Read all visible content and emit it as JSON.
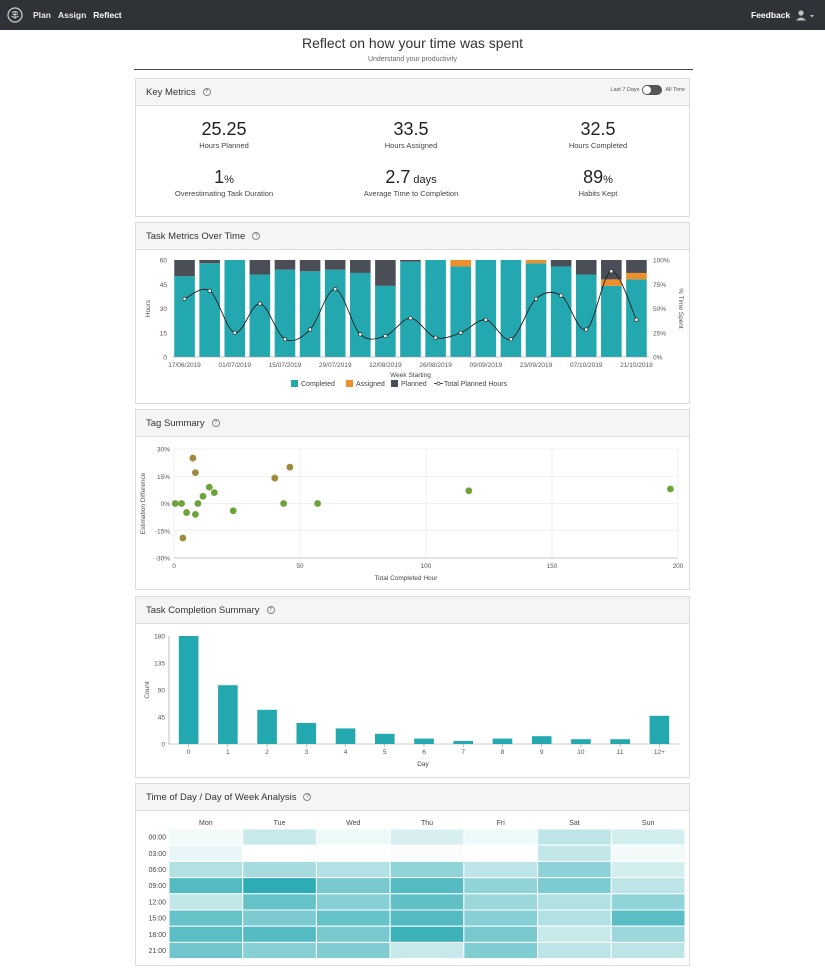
{
  "nav": {
    "logo": "brain-logo",
    "links": [
      "Plan",
      "Assign",
      "Reflect"
    ],
    "active": "Reflect",
    "feedback": "Feedback",
    "user_icon": "user-icon"
  },
  "page": {
    "title": "Reflect on how your time was spent",
    "subtitle": "Understand your productivity"
  },
  "key_metrics": {
    "title": "Key Metrics",
    "toggle_left": "Last 7 Days",
    "toggle_right": "All Time",
    "items": [
      {
        "value": "25.25",
        "unit": "",
        "label": "Hours Planned"
      },
      {
        "value": "33.5",
        "unit": "",
        "label": "Hours Assigned"
      },
      {
        "value": "32.5",
        "unit": "",
        "label": "Hours Completed"
      },
      {
        "value": "1",
        "unit": "%",
        "label": "Overestimating Task Duration"
      },
      {
        "value": "2.7",
        "unit": " days",
        "label": "Average Time to Completion"
      },
      {
        "value": "89",
        "unit": "%",
        "label": "Habits Kept"
      }
    ]
  },
  "task_metrics": {
    "title": "Task Metrics Over Time"
  },
  "tag_summary": {
    "title": "Tag Summary"
  },
  "completion_summary": {
    "title": "Task Completion Summary"
  },
  "heatmap_section": {
    "title": "Time of Day / Day of Week Analysis"
  },
  "colors": {
    "teal": "#23a8b0",
    "orange": "#ee8f2c",
    "dark": "#4a4e57",
    "green": "#6da33a",
    "olive": "#a08a3e"
  },
  "chart_data": [
    {
      "type": "bar",
      "title": "Task Metrics Over Time",
      "xlabel": "Week Starting",
      "ylabel": "Hours",
      "y2label": "% Time Spent",
      "ylim": [
        0,
        60
      ],
      "yticks": [
        0,
        15,
        30,
        45,
        60
      ],
      "y2ticks": [
        "0%",
        "25%",
        "50%",
        "75%",
        "100%"
      ],
      "x_tick_labels": [
        "17/06/2019",
        "01/07/2019",
        "15/07/2019",
        "29/07/2019",
        "12/08/2019",
        "26/08/2019",
        "09/09/2019",
        "23/09/2019",
        "07/10/2019",
        "21/10/2019"
      ],
      "legend": [
        "Completed",
        "Assigned",
        "Planned",
        "Total Planned Hours"
      ],
      "series": [
        {
          "name": "Completed",
          "values": [
            50,
            58,
            60,
            51,
            54,
            53,
            54,
            52,
            44,
            59,
            60,
            56,
            60,
            60,
            58,
            56,
            51,
            44,
            48
          ]
        },
        {
          "name": "Assigned",
          "values": [
            0,
            0,
            0,
            0,
            0,
            0,
            0,
            0,
            0,
            0,
            0,
            4,
            0,
            0,
            2,
            0,
            0,
            4,
            4
          ]
        },
        {
          "name": "Planned",
          "values": [
            10,
            2,
            0,
            9,
            6,
            7,
            6,
            8,
            16,
            1,
            0,
            0,
            0,
            0,
            0,
            4,
            9,
            12,
            8
          ]
        },
        {
          "name": "Total Planned Hours",
          "values": [
            36,
            41,
            15,
            33,
            11,
            17,
            42,
            14,
            13,
            24,
            12,
            15,
            23,
            11,
            36,
            38,
            17,
            53,
            23
          ]
        }
      ]
    },
    {
      "type": "scatter",
      "title": "Tag Summary",
      "xlabel": "Total Completed Hour",
      "ylabel": "Estimation Difference",
      "xlim": [
        0,
        200
      ],
      "ylim": [
        -30,
        30
      ],
      "xticks": [
        0,
        50,
        100,
        150,
        200
      ],
      "yticks": [
        "30%",
        "15%",
        "0%",
        "-15%",
        "-30%"
      ],
      "points": [
        {
          "x": 0.5,
          "y": 0,
          "c": "green"
        },
        {
          "x": 3,
          "y": 0,
          "c": "green"
        },
        {
          "x": 3.5,
          "y": -19,
          "c": "olive"
        },
        {
          "x": 5,
          "y": -5,
          "c": "green"
        },
        {
          "x": 7.5,
          "y": 25,
          "c": "olive"
        },
        {
          "x": 8.5,
          "y": 17,
          "c": "olive"
        },
        {
          "x": 8.5,
          "y": -6,
          "c": "green"
        },
        {
          "x": 9.5,
          "y": 0,
          "c": "green"
        },
        {
          "x": 11.5,
          "y": 4,
          "c": "green"
        },
        {
          "x": 14,
          "y": 9,
          "c": "green"
        },
        {
          "x": 16,
          "y": 6,
          "c": "green"
        },
        {
          "x": 23.5,
          "y": -4,
          "c": "green"
        },
        {
          "x": 40,
          "y": 14,
          "c": "olive"
        },
        {
          "x": 43.5,
          "y": 0,
          "c": "green"
        },
        {
          "x": 46,
          "y": 20,
          "c": "olive"
        },
        {
          "x": 57,
          "y": 0,
          "c": "green"
        },
        {
          "x": 117,
          "y": 7,
          "c": "green"
        },
        {
          "x": 197,
          "y": 8,
          "c": "green"
        }
      ]
    },
    {
      "type": "bar",
      "title": "Task Completion Summary",
      "xlabel": "Day",
      "ylabel": "Count",
      "ylim": [
        0,
        180
      ],
      "yticks": [
        0,
        45,
        90,
        135,
        180
      ],
      "categories": [
        "0",
        "1",
        "2",
        "3",
        "4",
        "5",
        "6",
        "7",
        "8",
        "9",
        "10",
        "11",
        "12+"
      ],
      "values": [
        180,
        98,
        57,
        35,
        26,
        17,
        9,
        5,
        9,
        13,
        8,
        8,
        47
      ]
    },
    {
      "type": "heatmap",
      "title": "Time of Day / Day of Week Analysis",
      "columns": [
        "Mon",
        "Tue",
        "Wed",
        "Thu",
        "Fri",
        "Sat",
        "Sun"
      ],
      "rows": [
        "00:00",
        "03:00",
        "06:00",
        "09:00",
        "12:00",
        "15:00",
        "18:00",
        "21:00"
      ],
      "values": [
        [
          0.06,
          0.25,
          0.08,
          0.18,
          0.08,
          0.3,
          0.2
        ],
        [
          0.1,
          0.0,
          0.01,
          0.02,
          0.0,
          0.28,
          0.06
        ],
        [
          0.35,
          0.4,
          0.35,
          0.5,
          0.3,
          0.52,
          0.2
        ],
        [
          0.78,
          0.95,
          0.62,
          0.78,
          0.5,
          0.6,
          0.3
        ],
        [
          0.28,
          0.7,
          0.55,
          0.72,
          0.45,
          0.35,
          0.5
        ],
        [
          0.7,
          0.6,
          0.7,
          0.78,
          0.55,
          0.35,
          0.75
        ],
        [
          0.75,
          0.78,
          0.62,
          0.88,
          0.62,
          0.25,
          0.45
        ],
        [
          0.65,
          0.55,
          0.58,
          0.25,
          0.58,
          0.3,
          0.3
        ]
      ]
    }
  ]
}
